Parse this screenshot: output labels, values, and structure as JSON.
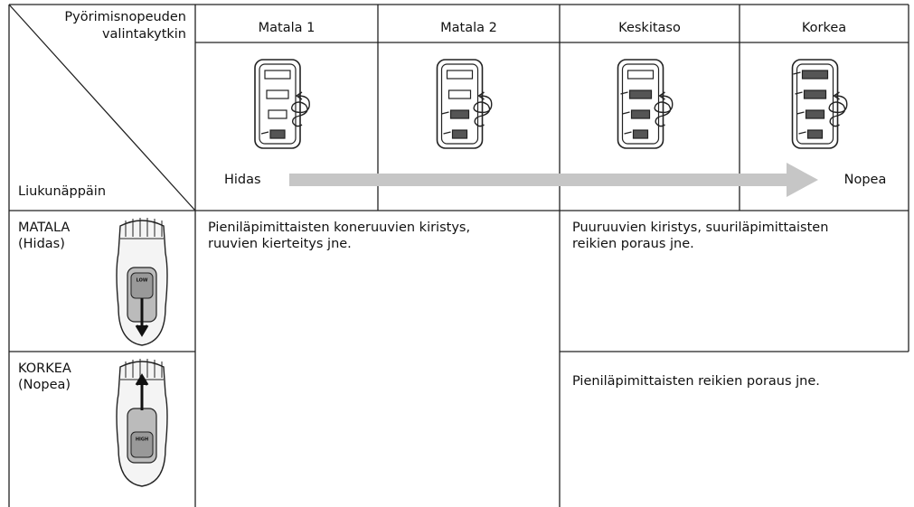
{
  "table": {
    "corner": {
      "top": [
        "Pyörimisnopeuden",
        "valintakytkin"
      ],
      "bottom": "Liukunäppäin"
    },
    "columns": [
      "Matala 1",
      "Matala 2",
      "Keskitaso",
      "Korkea"
    ],
    "speed_arrow": {
      "start": "Hidas",
      "end": "Nopea"
    },
    "rows": [
      {
        "label": [
          "MATALA",
          "(Hidas)"
        ],
        "switch": "LOW"
      },
      {
        "label": [
          "KORKEA",
          "(Nopea)"
        ],
        "switch": "HIGH"
      }
    ],
    "cells": {
      "low_gears": [
        "Pieniläpimittaisten koneruuvien kiristys,",
        "ruuvien kierteitys jne."
      ],
      "high_gear_low": [
        "Puuruuvien kiristys, suuriläpimittaisten",
        "reikien poraus jne."
      ],
      "high_gear_high": [
        "Pieniläpimittaisten reikien poraus jne."
      ]
    }
  }
}
